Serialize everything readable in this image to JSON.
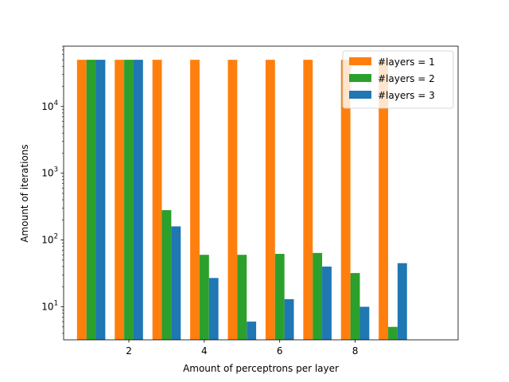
{
  "chart_data": {
    "type": "bar",
    "xlabel": "Amount of perceptrons per layer",
    "ylabel": "Amount of iterations",
    "yscale": "log",
    "xlim": [
      0.27,
      10.73
    ],
    "ylim": [
      3.2,
      80000
    ],
    "x": [
      1,
      2,
      3,
      4,
      5,
      6,
      7,
      8,
      9
    ],
    "xticks": [
      2,
      4,
      6,
      8
    ],
    "yticks": [
      {
        "value": 10,
        "base": "10",
        "exp": "1"
      },
      {
        "value": 100,
        "base": "10",
        "exp": "2"
      },
      {
        "value": 1000,
        "base": "10",
        "exp": "3"
      },
      {
        "value": 10000,
        "base": "10",
        "exp": "4"
      }
    ],
    "legend_position": "top-right",
    "grid": false,
    "series": [
      {
        "name": "#layers = 1",
        "color": "#ff7f0e",
        "values": [
          50000,
          50000,
          50000,
          50000,
          50000,
          50000,
          50000,
          50000,
          50000
        ]
      },
      {
        "name": "#layers = 2",
        "color": "#2ca02c",
        "values": [
          50000,
          50000,
          280,
          60,
          60,
          62,
          64,
          32,
          5
        ]
      },
      {
        "name": "#layers = 3",
        "color": "#1f77b4",
        "values": [
          50000,
          50000,
          160,
          27,
          6,
          13,
          40,
          10,
          45
        ]
      }
    ]
  }
}
